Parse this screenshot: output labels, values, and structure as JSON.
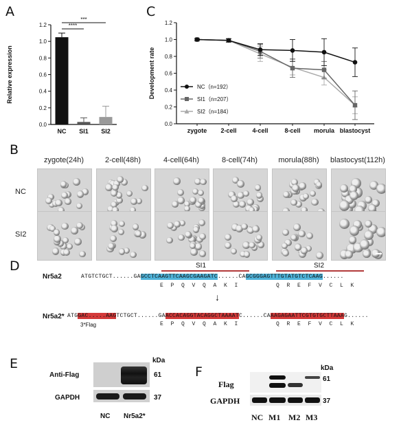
{
  "panels": {
    "A": "A",
    "B": "B",
    "C": "C",
    "D": "D",
    "E": "E",
    "F": "F"
  },
  "chart_data": [
    {
      "type": "bar",
      "panel": "A",
      "title": "",
      "xlabel": "",
      "ylabel": "Relative expression",
      "ylim": [
        0,
        1.2
      ],
      "yticks": [
        "0.0",
        "0.2",
        "0.4",
        "0.6",
        "0.8",
        "1.0",
        "1.2"
      ],
      "categories": [
        "NC",
        "SI1",
        "SI2"
      ],
      "values": [
        1.05,
        0.03,
        0.09
      ],
      "errors": [
        0.05,
        0.05,
        0.13
      ],
      "bar_colors": [
        "#111111",
        "#555555",
        "#9a9a9a"
      ],
      "significance": [
        "****",
        "***"
      ]
    },
    {
      "type": "line",
      "panel": "C",
      "title": "",
      "xlabel": "",
      "ylabel": "Development rate",
      "ylim": [
        0,
        1.2
      ],
      "yticks": [
        "0.0",
        "0.2",
        "0.4",
        "0.6",
        "0.8",
        "1.0",
        "1.2"
      ],
      "categories": [
        "zygote",
        "2-cell",
        "4-cell",
        "8-cell",
        "morula",
        "blastocyst"
      ],
      "legend_position": "left",
      "series": [
        {
          "name": "NC（n=192）",
          "color": "#111111",
          "marker": "circle",
          "values": [
            1.0,
            0.99,
            0.88,
            0.87,
            0.85,
            0.73
          ],
          "errors": [
            0.01,
            0.02,
            0.07,
            0.13,
            0.16,
            0.17
          ]
        },
        {
          "name": "SI1（n=207）",
          "color": "#666666",
          "marker": "square",
          "values": [
            1.0,
            0.99,
            0.86,
            0.66,
            0.64,
            0.22
          ],
          "errors": [
            0.01,
            0.02,
            0.08,
            0.11,
            0.1,
            0.17
          ]
        },
        {
          "name": "SI2（n=184）",
          "color": "#aaaaaa",
          "marker": "triangle",
          "values": [
            1.0,
            0.99,
            0.83,
            0.67,
            0.55,
            0.22
          ],
          "errors": [
            0.01,
            0.02,
            0.09,
            0.09,
            0.09,
            0.1
          ]
        }
      ]
    }
  ],
  "panel_b": {
    "stages": [
      "zygote(24h)",
      "2-cell(48h)",
      "4-cell(64h)",
      "8-cell(74h)",
      "morula(88h)",
      "blastocyst(112h)"
    ],
    "rows": [
      "NC",
      "SI2"
    ]
  },
  "panel_d": {
    "gene1": "Nr5a2",
    "gene2": "Nr5a2*",
    "si1_label": "SI1",
    "si2_label": "SI2",
    "seq1_prefix": "ATGTCTGCT......GA",
    "seq1_si1": "GCCTCAAGTTCAAGCGAAGATC",
    "seq1_mid": "......CA",
    "seq1_si2": "GCGGGAGTTTGTATGTCTCAAG",
    "seq1_suffix": "......",
    "seq2_prefix": "ATG",
    "seq2_flag": "GAC.....AAG",
    "seq2_mid1": "TCTGCT......GA",
    "seq2_si1": "ACCACAGGTACAGGCTAAAAT",
    "seq2_mid2": "C......CA",
    "seq2_si2": "AAGAGAATTCGTGTGCTTAAA",
    "seq2_suffix": "G......",
    "flag_label": "3*Flag",
    "aa1": [
      "E",
      "P",
      "Q",
      "V",
      "Q",
      "A",
      "K",
      "I"
    ],
    "aa2": [
      "Q",
      "R",
      "E",
      "F",
      "V",
      "C",
      "L",
      "K"
    ],
    "arrow": "↓"
  },
  "panel_e": {
    "kda": "kDa",
    "anti_flag": "Anti-Flag",
    "gapdh": "GAPDH",
    "mw1": "61",
    "mw2": "37",
    "lanes": [
      "NC",
      "Nr5a2*"
    ]
  },
  "panel_f": {
    "kda": "kDa",
    "flag": "Flag",
    "gapdh": "GAPDH",
    "mw1": "61",
    "mw2": "37",
    "lanes": [
      "NC",
      "M1",
      "M2",
      "M3"
    ]
  }
}
